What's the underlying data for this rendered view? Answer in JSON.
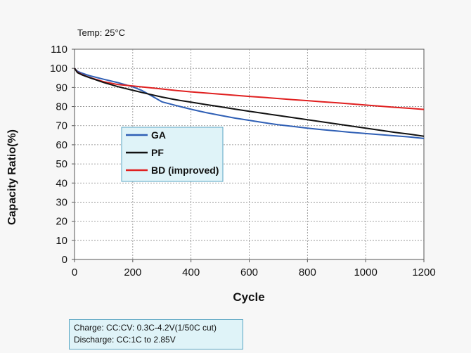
{
  "chart_data": {
    "type": "line",
    "annotation_top": "Temp: 25°C",
    "xlabel": "Cycle",
    "ylabel": "Capacity Ratio(%)",
    "xlim": [
      0,
      1200
    ],
    "ylim": [
      0,
      110
    ],
    "xticks": [
      0,
      200,
      400,
      600,
      800,
      1000,
      1200
    ],
    "yticks": [
      0,
      10,
      20,
      30,
      40,
      50,
      60,
      70,
      80,
      90,
      100,
      110
    ],
    "grid": true,
    "legend_position": "center-left",
    "series": [
      {
        "name": "GA",
        "color": "#2f5fb5",
        "x": [
          0,
          10,
          25,
          50,
          100,
          150,
          200,
          230,
          260,
          300,
          350,
          400,
          450,
          500,
          550,
          600,
          650,
          700,
          750,
          800,
          850,
          900,
          950,
          1000,
          1050,
          1100,
          1150,
          1200
        ],
        "y": [
          100,
          98.5,
          97.5,
          96.2,
          94.3,
          92.5,
          90.3,
          88.5,
          86.0,
          82.5,
          80.5,
          78.6,
          76.9,
          75.4,
          74.0,
          72.8,
          71.6,
          70.5,
          69.6,
          68.7,
          67.9,
          67.2,
          66.5,
          65.9,
          65.3,
          64.7,
          64.1,
          63.3
        ]
      },
      {
        "name": "PF",
        "color": "#111111",
        "x": [
          0,
          10,
          25,
          50,
          100,
          150,
          200,
          250,
          300,
          350,
          400,
          450,
          500,
          550,
          600,
          650,
          700,
          750,
          800,
          850,
          900,
          950,
          1000,
          1050,
          1100,
          1150,
          1200
        ],
        "y": [
          100,
          97.8,
          96.6,
          95.2,
          92.6,
          90.4,
          88.5,
          86.7,
          85.0,
          83.5,
          82.3,
          81.1,
          79.9,
          78.7,
          77.5,
          76.4,
          75.3,
          74.2,
          73.1,
          72.0,
          70.9,
          69.8,
          68.7,
          67.6,
          66.5,
          65.6,
          64.5
        ]
      },
      {
        "name": "BD (improved)",
        "color": "#e02020",
        "x": [
          0,
          10,
          25,
          50,
          100,
          150,
          200,
          250,
          300,
          350,
          400,
          450,
          500,
          550,
          600,
          650,
          700,
          750,
          800,
          850,
          900,
          950,
          1000,
          1050,
          1100,
          1150,
          1200
        ],
        "y": [
          100,
          98.0,
          96.8,
          95.3,
          93.0,
          91.5,
          90.8,
          90.0,
          89.2,
          88.4,
          87.7,
          87.1,
          86.5,
          85.9,
          85.3,
          84.8,
          84.2,
          83.6,
          83.1,
          82.5,
          82.0,
          81.4,
          80.8,
          80.2,
          79.6,
          79.1,
          78.5
        ]
      }
    ]
  },
  "conditions": {
    "line1": "Charge: CC:CV: 0.3C-4.2V(1/50C cut)",
    "line2": "Discharge: CC:1C to 2.85V"
  }
}
